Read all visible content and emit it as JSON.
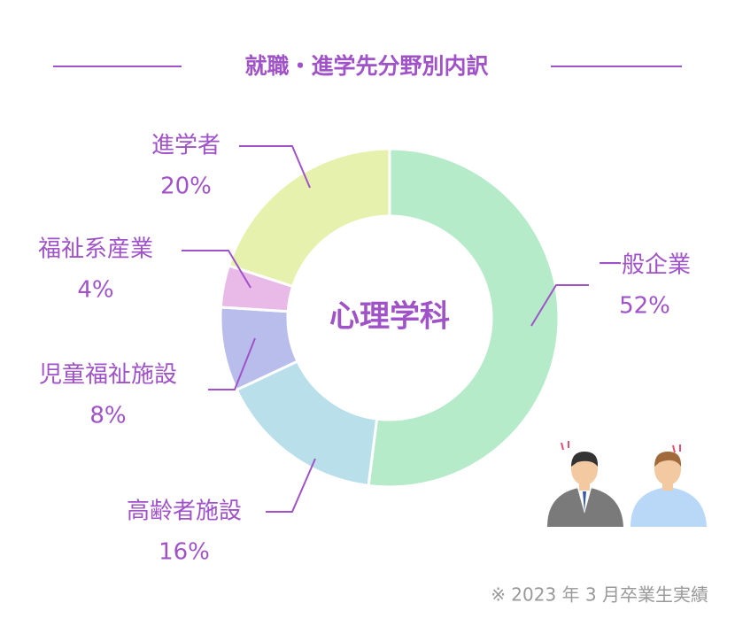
{
  "chart_data": {
    "type": "pie",
    "donut": true,
    "title": "就職・進学先分野別内訳",
    "center_label": "心理学科",
    "note": "※ 2023 年 3 月卒業生実績",
    "categories": [
      "一般企業",
      "高齢者施設",
      "児童福祉施設",
      "福祉系産業",
      "進学者"
    ],
    "values": [
      52,
      16,
      8,
      4,
      20
    ],
    "value_labels": [
      "52%",
      "16%",
      "8%",
      "4%",
      "20%"
    ],
    "colors": [
      "#b5ebc9",
      "#b8dfea",
      "#b9bdeb",
      "#e9b9e8",
      "#e6f1ad"
    ]
  }
}
